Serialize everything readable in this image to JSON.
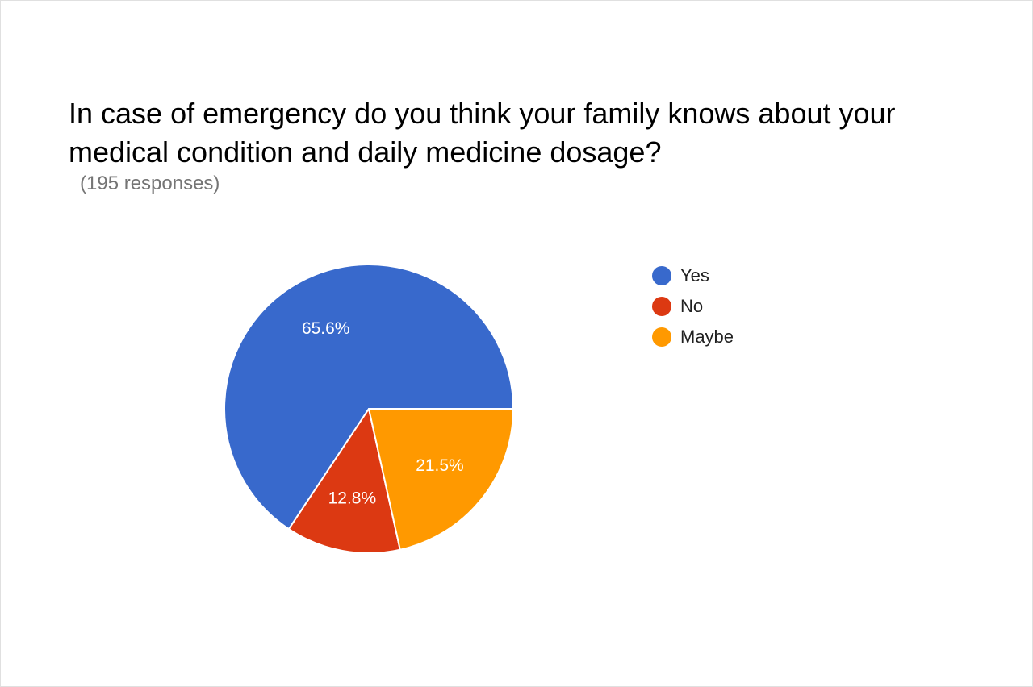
{
  "chart_data": {
    "type": "pie",
    "title": "In case of emergency do you think your family knows about your medical condition and daily medicine dosage?",
    "subtitle": "(195 responses)",
    "categories": [
      "Yes",
      "No",
      "Maybe"
    ],
    "values": [
      65.6,
      12.8,
      21.5
    ],
    "value_labels": [
      "65.6%",
      "12.8%",
      "21.5%"
    ],
    "colors": [
      "#3869cc",
      "#dc3912",
      "#ff9900"
    ],
    "legend_position": "right",
    "slice_order": "counterclockwise from 3 o'clock",
    "label_color": "#ffffff"
  }
}
